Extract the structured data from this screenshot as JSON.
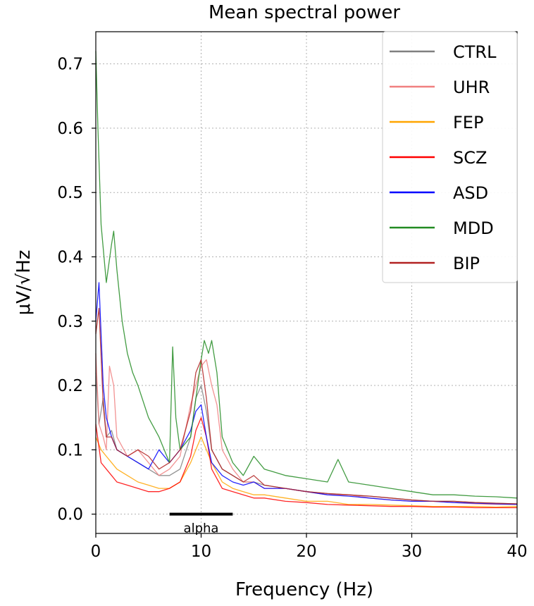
{
  "chart_data": {
    "type": "line",
    "title": "Mean spectral power",
    "xlabel": "Frequency (Hz)",
    "ylabel": "μV/√Hz",
    "xlim": [
      0,
      40
    ],
    "ylim": [
      -0.03,
      0.75
    ],
    "xticks": [
      0,
      10,
      20,
      30,
      40
    ],
    "yticks": [
      0.0,
      0.1,
      0.2,
      0.3,
      0.4,
      0.5,
      0.6,
      0.7
    ],
    "xtick_labels": [
      "0",
      "10",
      "20",
      "30",
      "40"
    ],
    "ytick_labels": [
      "0.0",
      "0.1",
      "0.2",
      "0.3",
      "0.4",
      "0.5",
      "0.6",
      "0.7"
    ],
    "grid": true,
    "legend_position": "top-right",
    "annotation": {
      "text": "alpha",
      "x_start": 7,
      "x_end": 13,
      "y": 0.0
    },
    "series": [
      {
        "name": "CTRL",
        "color": "#808080",
        "x": [
          0,
          0.3,
          0.7,
          1,
          1.5,
          2,
          3,
          4,
          5,
          6,
          7,
          8,
          9,
          9.5,
          10,
          10.5,
          11,
          12,
          13,
          14,
          15,
          16,
          18,
          20,
          22,
          24,
          26,
          28,
          30,
          32,
          34,
          36,
          38,
          40
        ],
        "values": [
          0.22,
          0.14,
          0.18,
          0.12,
          0.13,
          0.1,
          0.09,
          0.08,
          0.07,
          0.06,
          0.06,
          0.07,
          0.12,
          0.18,
          0.2,
          0.16,
          0.1,
          0.07,
          0.06,
          0.05,
          0.05,
          0.045,
          0.04,
          0.035,
          0.032,
          0.03,
          0.028,
          0.025,
          0.022,
          0.02,
          0.02,
          0.018,
          0.017,
          0.016
        ]
      },
      {
        "name": "UHR",
        "color": "#f08080",
        "x": [
          0,
          0.3,
          0.7,
          1,
          1.3,
          1.7,
          2,
          3,
          4,
          5,
          6,
          7,
          8,
          9,
          9.5,
          10,
          10.5,
          11,
          11.5,
          12,
          13,
          14,
          15,
          16,
          18,
          20,
          22,
          24,
          26,
          28,
          30,
          32,
          34,
          36,
          38,
          40
        ],
        "values": [
          0.25,
          0.14,
          0.12,
          0.1,
          0.23,
          0.2,
          0.12,
          0.09,
          0.1,
          0.08,
          0.06,
          0.07,
          0.09,
          0.17,
          0.2,
          0.23,
          0.24,
          0.2,
          0.17,
          0.1,
          0.07,
          0.05,
          0.05,
          0.04,
          0.04,
          0.035,
          0.03,
          0.03,
          0.025,
          0.022,
          0.02,
          0.02,
          0.018,
          0.016,
          0.015,
          0.015
        ]
      },
      {
        "name": "FEP",
        "color": "#ffa500",
        "x": [
          0,
          0.5,
          1,
          1.5,
          2,
          3,
          4,
          5,
          6,
          7,
          8,
          9,
          9.5,
          10,
          10.5,
          11,
          12,
          13,
          14,
          15,
          16,
          18,
          20,
          22,
          24,
          26,
          28,
          30,
          32,
          34,
          36,
          38,
          40
        ],
        "values": [
          0.12,
          0.1,
          0.09,
          0.08,
          0.07,
          0.06,
          0.05,
          0.045,
          0.04,
          0.04,
          0.05,
          0.08,
          0.1,
          0.12,
          0.1,
          0.08,
          0.05,
          0.04,
          0.035,
          0.03,
          0.03,
          0.025,
          0.02,
          0.02,
          0.015,
          0.015,
          0.014,
          0.013,
          0.012,
          0.012,
          0.012,
          0.011,
          0.012
        ]
      },
      {
        "name": "SCZ",
        "color": "#ff0000",
        "x": [
          0,
          0.5,
          1,
          1.5,
          2,
          3,
          4,
          5,
          6,
          7,
          8,
          9,
          9.5,
          10,
          10.5,
          11,
          12,
          13,
          14,
          15,
          16,
          18,
          20,
          22,
          24,
          26,
          28,
          30,
          32,
          34,
          36,
          38,
          40
        ],
        "values": [
          0.14,
          0.08,
          0.07,
          0.06,
          0.05,
          0.045,
          0.04,
          0.035,
          0.035,
          0.04,
          0.05,
          0.09,
          0.13,
          0.15,
          0.12,
          0.07,
          0.04,
          0.035,
          0.03,
          0.025,
          0.025,
          0.02,
          0.018,
          0.015,
          0.014,
          0.013,
          0.012,
          0.012,
          0.011,
          0.011,
          0.01,
          0.01,
          0.01
        ]
      },
      {
        "name": "ASD",
        "color": "#0000ff",
        "x": [
          0,
          0.3,
          0.7,
          1,
          1.5,
          2,
          3,
          4,
          5,
          6,
          7,
          8,
          9,
          9.5,
          10,
          10.5,
          11,
          12,
          13,
          14,
          15,
          16,
          18,
          20,
          22,
          24,
          26,
          28,
          30,
          32,
          34,
          36,
          38,
          40
        ],
        "values": [
          0.3,
          0.36,
          0.2,
          0.15,
          0.12,
          0.1,
          0.09,
          0.08,
          0.07,
          0.1,
          0.08,
          0.1,
          0.13,
          0.16,
          0.17,
          0.12,
          0.08,
          0.06,
          0.05,
          0.045,
          0.05,
          0.04,
          0.04,
          0.035,
          0.03,
          0.028,
          0.025,
          0.022,
          0.02,
          0.02,
          0.018,
          0.017,
          0.016,
          0.015
        ]
      },
      {
        "name": "MDD",
        "color": "#228b22",
        "x": [
          0,
          0.2,
          0.5,
          1,
          1.5,
          1.7,
          2,
          2.5,
          3,
          3.5,
          4,
          5,
          6,
          7,
          7.3,
          7.6,
          8,
          9,
          10,
          10.3,
          10.7,
          11,
          11.5,
          12,
          13,
          14,
          15,
          16,
          18,
          20,
          22,
          23,
          24,
          26,
          28,
          30,
          32,
          34,
          36,
          38,
          40
        ],
        "values": [
          0.72,
          0.6,
          0.45,
          0.36,
          0.42,
          0.44,
          0.38,
          0.3,
          0.25,
          0.22,
          0.2,
          0.15,
          0.12,
          0.08,
          0.26,
          0.15,
          0.1,
          0.12,
          0.24,
          0.27,
          0.25,
          0.27,
          0.22,
          0.12,
          0.08,
          0.06,
          0.09,
          0.07,
          0.06,
          0.055,
          0.05,
          0.085,
          0.05,
          0.045,
          0.04,
          0.035,
          0.03,
          0.03,
          0.028,
          0.027,
          0.025
        ]
      },
      {
        "name": "BIP",
        "color": "#b22222",
        "x": [
          0,
          0.3,
          0.7,
          1,
          1.5,
          2,
          3,
          4,
          5,
          6,
          7,
          8,
          9,
          9.5,
          10,
          10.5,
          11,
          12,
          13,
          14,
          15,
          16,
          18,
          20,
          22,
          24,
          26,
          28,
          30,
          32,
          34,
          36,
          38,
          40
        ],
        "values": [
          0.28,
          0.32,
          0.17,
          0.12,
          0.12,
          0.1,
          0.09,
          0.1,
          0.09,
          0.07,
          0.08,
          0.1,
          0.16,
          0.22,
          0.24,
          0.18,
          0.1,
          0.07,
          0.06,
          0.05,
          0.06,
          0.045,
          0.04,
          0.035,
          0.032,
          0.03,
          0.028,
          0.025,
          0.022,
          0.02,
          0.02,
          0.018,
          0.017,
          0.016
        ]
      }
    ]
  }
}
